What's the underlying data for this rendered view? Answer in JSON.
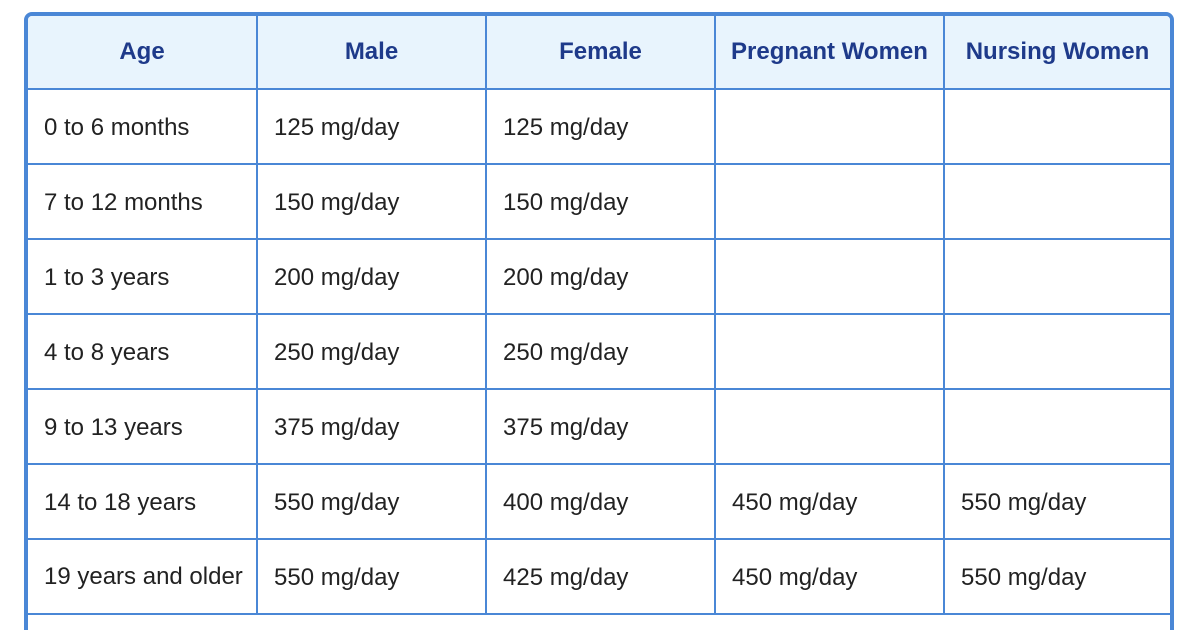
{
  "table": {
    "headers": [
      "Age",
      "Male",
      "Female",
      "Pregnant Women",
      "Nursing Women"
    ],
    "rows": [
      [
        "0 to 6 months",
        "125 mg/day",
        "125 mg/day",
        "",
        ""
      ],
      [
        "7 to 12 months",
        "150 mg/day",
        "150 mg/day",
        "",
        ""
      ],
      [
        "1 to 3 years",
        "200 mg/day",
        "200 mg/day",
        "",
        ""
      ],
      [
        "4 to 8 years",
        "250 mg/day",
        "250 mg/day",
        "",
        ""
      ],
      [
        "9 to 13 years",
        "375 mg/day",
        "375 mg/day",
        "",
        ""
      ],
      [
        "14 to 18 years",
        "550 mg/day",
        "400 mg/day",
        "450 mg/day",
        "550 mg/day"
      ],
      [
        "19 years and older",
        "550 mg/day",
        "425 mg/day",
        "450 mg/day",
        "550 mg/day"
      ]
    ]
  },
  "colors": {
    "border": "#4a87d6",
    "header_bg": "#e8f4fd",
    "header_text": "#1e3a8a",
    "cell_text": "#222222"
  }
}
